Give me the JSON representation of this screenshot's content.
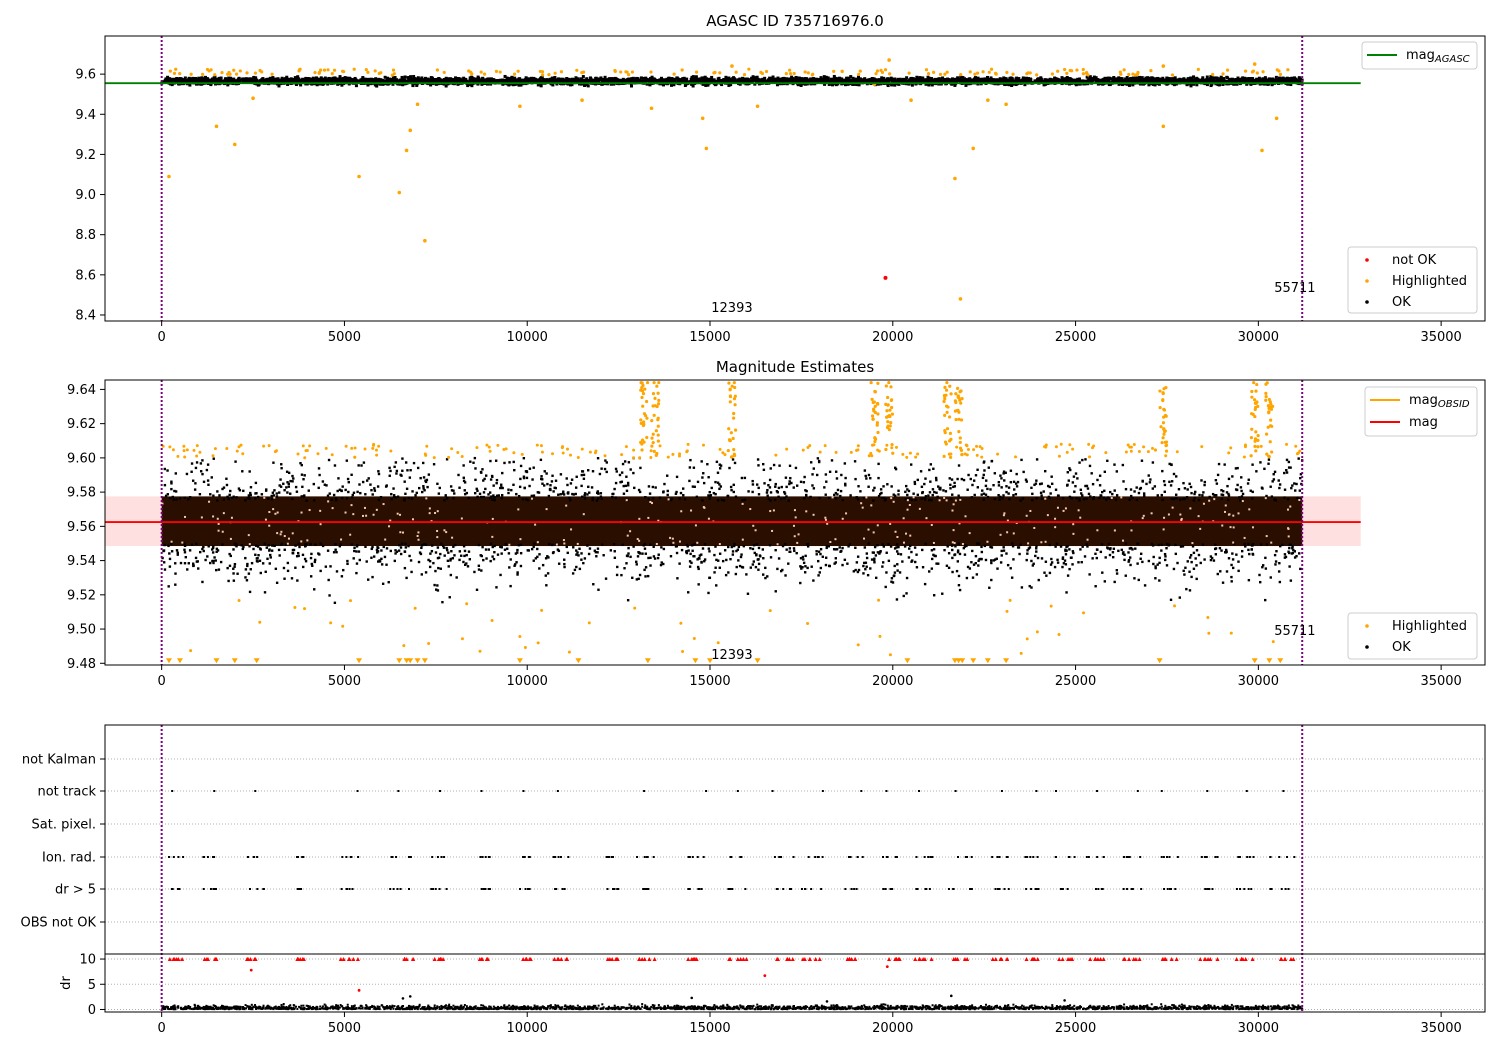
{
  "chart_data": [
    {
      "type": "scatter",
      "title": "AGASC ID 735716976.0",
      "xlim": [
        -1550,
        36200
      ],
      "ylim": [
        8.37,
        9.79
      ],
      "xticks": [
        0,
        5000,
        10000,
        15000,
        20000,
        25000,
        30000,
        35000
      ],
      "xtick_labels": [
        "0",
        "5000",
        "10000",
        "15000",
        "20000",
        "25000",
        "30000",
        "35000"
      ],
      "yticks": [
        8.4,
        8.6,
        8.8,
        9.0,
        9.2,
        9.4,
        9.6
      ],
      "ytick_labels": [
        "8.4",
        "8.6",
        "8.8",
        "9.0",
        "9.2",
        "9.4",
        "9.6"
      ],
      "vlines": [
        0,
        31200
      ],
      "hlines": [
        {
          "name": "mag_AGASC",
          "y": 9.555,
          "x": [
            -1550,
            32800
          ],
          "color": "#008000"
        }
      ],
      "annotations": [
        {
          "text": "12393",
          "x": 15600,
          "y": 8.415
        },
        {
          "text": "55711",
          "x": 31000,
          "y": 8.515
        }
      ],
      "legend_upper": [
        {
          "label": "mag",
          "sub": "AGASC",
          "color": "#008000"
        }
      ],
      "legend_lower": [
        {
          "label": "not OK",
          "color": "#ff0000"
        },
        {
          "label": "Highlighted",
          "color": "#ffa500"
        },
        {
          "label": "OK",
          "color": "#000000"
        }
      ],
      "series": [
        {
          "name": "OK",
          "color": "#000000",
          "band": {
            "x_range": [
              0,
              31200
            ],
            "center": 9.565,
            "spread": 0.025
          }
        },
        {
          "name": "Highlighted",
          "color": "#ffa500",
          "points": [
            [
              200,
              9.09
            ],
            [
              1500,
              9.34
            ],
            [
              2000,
              9.25
            ],
            [
              2500,
              9.48
            ],
            [
              5400,
              9.09
            ],
            [
              6500,
              9.01
            ],
            [
              6700,
              9.22
            ],
            [
              6800,
              9.32
            ],
            [
              7000,
              9.45
            ],
            [
              7200,
              8.77
            ],
            [
              9800,
              9.44
            ],
            [
              11500,
              9.47
            ],
            [
              13400,
              9.43
            ],
            [
              14800,
              9.38
            ],
            [
              14900,
              9.23
            ],
            [
              16300,
              9.44
            ],
            [
              19500,
              9.55
            ],
            [
              20500,
              9.47
            ],
            [
              21700,
              9.08
            ],
            [
              21850,
              8.48
            ],
            [
              22200,
              9.23
            ],
            [
              22600,
              9.47
            ],
            [
              23100,
              9.45
            ],
            [
              27400,
              9.34
            ],
            [
              30100,
              9.22
            ],
            [
              30500,
              9.38
            ],
            [
              15600,
              9.64
            ],
            [
              19900,
              9.67
            ],
            [
              27400,
              9.64
            ],
            [
              29900,
              9.65
            ]
          ]
        },
        {
          "name": "not OK",
          "color": "#ff0000",
          "points": [
            [
              19800,
              8.585
            ]
          ]
        }
      ]
    },
    {
      "type": "scatter",
      "title": "Magnitude Estimates",
      "xlim": [
        -1550,
        36200
      ],
      "ylim": [
        9.479,
        9.6455
      ],
      "xticks": [
        0,
        5000,
        10000,
        15000,
        20000,
        25000,
        30000,
        35000
      ],
      "xtick_labels": [
        "0",
        "5000",
        "10000",
        "15000",
        "20000",
        "25000",
        "30000",
        "35000"
      ],
      "yticks": [
        9.48,
        9.5,
        9.52,
        9.54,
        9.56,
        9.58,
        9.6,
        9.62,
        9.64
      ],
      "ytick_labels": [
        "9.48",
        "9.50",
        "9.52",
        "9.54",
        "9.56",
        "9.58",
        "9.60",
        "9.62",
        "9.64"
      ],
      "vlines": [
        0,
        31200
      ],
      "hlines": [
        {
          "name": "mag",
          "y": 9.5625,
          "x": [
            -1550,
            32800
          ],
          "color": "#ff0000"
        }
      ],
      "band": {
        "y": [
          9.5485,
          9.5775
        ],
        "x": [
          -1550,
          32800
        ],
        "color": "#ffd6d6"
      },
      "annotations": [
        {
          "text": "12393",
          "x": 15600,
          "y": 9.4825
        },
        {
          "text": "55711",
          "x": 31000,
          "y": 9.4965
        }
      ],
      "legend_upper": [
        {
          "label": "mag",
          "sub": "OBSID",
          "color": "#ffa500"
        },
        {
          "label": "mag",
          "sub": "",
          "color": "#ff0000"
        }
      ],
      "legend_lower": [
        {
          "label": "Highlighted",
          "color": "#ffa500"
        },
        {
          "label": "OK",
          "color": "#000000"
        }
      ],
      "series": [
        {
          "name": "OK",
          "color": "#000000",
          "band": {
            "x_range": [
              0,
              31200
            ],
            "center": 9.5625,
            "spread": 0.036
          }
        },
        {
          "name": "Highlighted",
          "color": "#ffa500",
          "columns": [
            13200,
            13500,
            15600,
            19500,
            19900,
            21500,
            21800,
            27400,
            29900,
            30300
          ],
          "clipped_markers": [
            200,
            500,
            1500,
            2000,
            2600,
            5400,
            6500,
            6700,
            6800,
            7000,
            7200,
            9800,
            11400,
            13300,
            14600,
            15000,
            16300,
            20400,
            21700,
            21800,
            21900,
            22200,
            22600,
            23100,
            27300,
            29900,
            30300,
            30600
          ]
        }
      ]
    },
    {
      "type": "scatter",
      "title": "",
      "xlim": [
        -1550,
        36200
      ],
      "xticks": [
        0,
        5000,
        10000,
        15000,
        20000,
        25000,
        30000,
        35000
      ],
      "xtick_labels": [
        "0",
        "5000",
        "10000",
        "15000",
        "20000",
        "25000",
        "30000",
        "35000"
      ],
      "flag_rows": [
        "not Kalman",
        "not track",
        "Sat. pixel.",
        "Ion. rad.",
        "dr > 5",
        "OBS not OK"
      ],
      "flag_observation_ranges": [
        [
          200,
          600
        ],
        [
          1100,
          1500
        ],
        [
          2300,
          2800
        ],
        [
          3700,
          3900
        ],
        [
          4900,
          5400
        ],
        [
          6200,
          6900
        ],
        [
          7300,
          7800
        ],
        [
          8700,
          9000
        ],
        [
          9800,
          10100
        ],
        [
          10700,
          11200
        ],
        [
          12100,
          12500
        ],
        [
          13000,
          13500
        ],
        [
          14400,
          14900
        ],
        [
          15500,
          16000
        ],
        [
          16700,
          17300
        ],
        [
          17500,
          18200
        ],
        [
          18700,
          19200
        ],
        [
          19700,
          20200
        ],
        [
          20600,
          21100
        ],
        [
          21500,
          22200
        ],
        [
          22700,
          23200
        ],
        [
          23600,
          24000
        ],
        [
          24400,
          25000
        ],
        [
          25300,
          25800
        ],
        [
          26300,
          26800
        ],
        [
          27300,
          27800
        ],
        [
          28400,
          28900
        ],
        [
          29400,
          29900
        ],
        [
          30300,
          31000
        ]
      ],
      "dr": {
        "ylabel": "dr",
        "ylim": [
          -0.5,
          11
        ],
        "yticks": [
          0,
          5,
          10
        ],
        "ytick_labels": [
          "0",
          "5",
          "10"
        ],
        "baseline": 0.4,
        "clip": 10,
        "red_outliers": [
          [
            2450,
            7.8
          ],
          [
            5400,
            3.8
          ],
          [
            16500,
            6.7
          ],
          [
            19850,
            8.5
          ]
        ]
      }
    }
  ]
}
